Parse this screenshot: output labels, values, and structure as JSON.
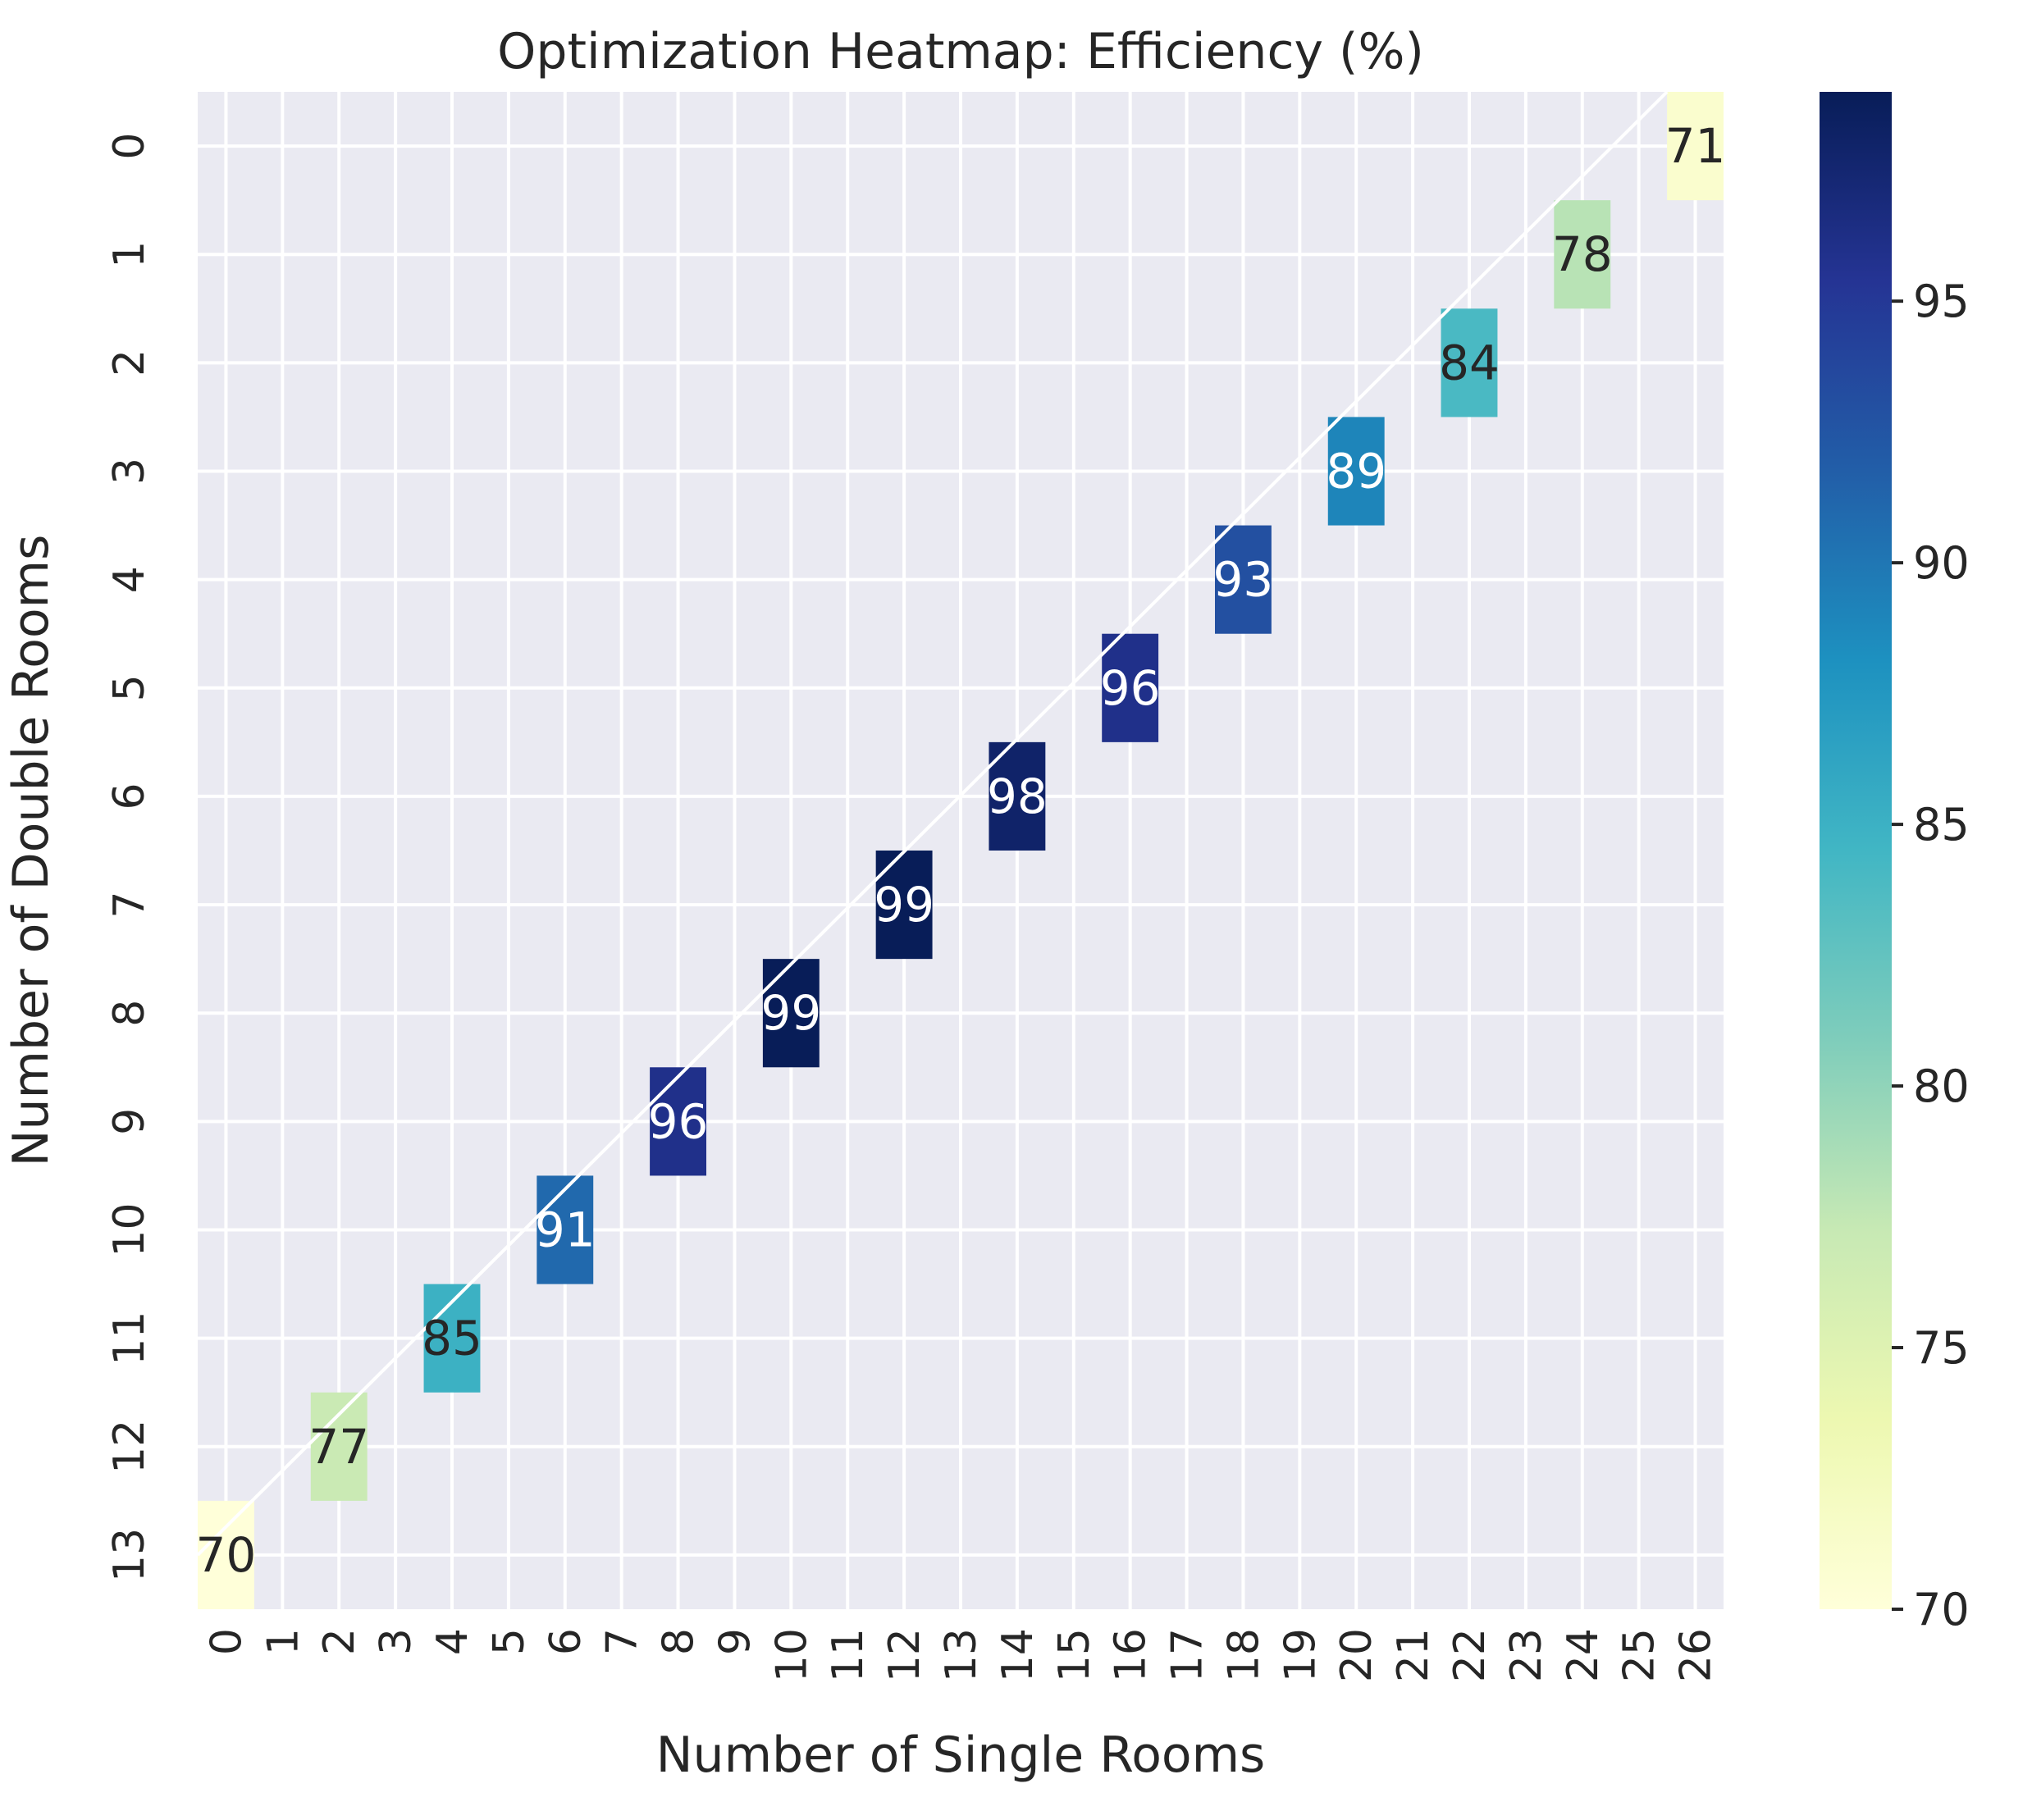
{
  "chart_data": {
    "type": "heatmap",
    "title": "Optimization Heatmap: Efficiency (%)",
    "xlabel": "Number of Single Rooms",
    "ylabel": "Number of Double Rooms",
    "x_ticks": [
      "0",
      "1",
      "2",
      "3",
      "4",
      "5",
      "6",
      "7",
      "8",
      "9",
      "10",
      "11",
      "12",
      "13",
      "14",
      "15",
      "16",
      "17",
      "18",
      "19",
      "20",
      "21",
      "22",
      "23",
      "24",
      "25",
      "26"
    ],
    "y_ticks": [
      "0",
      "1",
      "2",
      "3",
      "4",
      "5",
      "6",
      "7",
      "8",
      "9",
      "10",
      "11",
      "12",
      "13"
    ],
    "cells": [
      {
        "x": 26,
        "y": 0,
        "value": 71
      },
      {
        "x": 24,
        "y": 1,
        "value": 78
      },
      {
        "x": 22,
        "y": 2,
        "value": 84
      },
      {
        "x": 20,
        "y": 3,
        "value": 89
      },
      {
        "x": 18,
        "y": 4,
        "value": 93
      },
      {
        "x": 16,
        "y": 5,
        "value": 96
      },
      {
        "x": 14,
        "y": 6,
        "value": 98
      },
      {
        "x": 12,
        "y": 7,
        "value": 99
      },
      {
        "x": 10,
        "y": 8,
        "value": 99
      },
      {
        "x": 8,
        "y": 9,
        "value": 96
      },
      {
        "x": 6,
        "y": 10,
        "value": 91
      },
      {
        "x": 4,
        "y": 11,
        "value": 85
      },
      {
        "x": 2,
        "y": 12,
        "value": 77
      },
      {
        "x": 0,
        "y": 13,
        "value": 70
      }
    ],
    "colorbar": {
      "colormap": "YlGnBu",
      "range": [
        70,
        99
      ],
      "ticks": [
        "70",
        "75",
        "80",
        "85",
        "90",
        "95"
      ]
    },
    "grid": true,
    "background_color": "#eaeaf2",
    "diagonal_line": true
  }
}
